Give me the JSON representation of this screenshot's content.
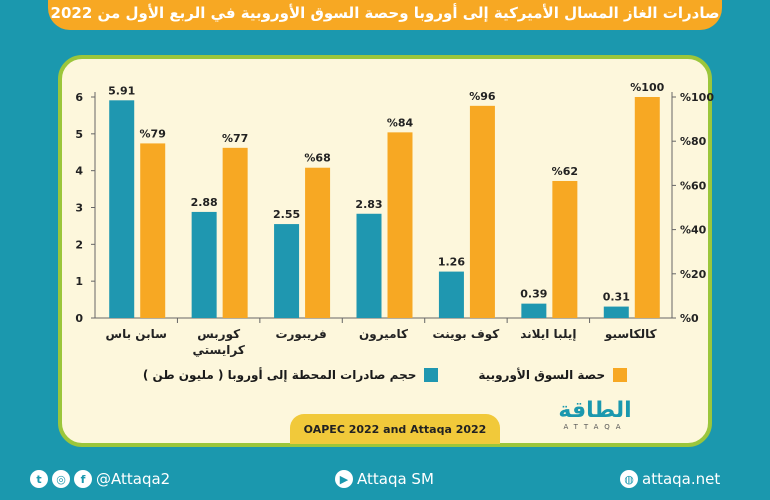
{
  "title": "صادرات الغاز المسال الأميركية إلى أوروبا وحصة السوق الأوروبية في الربع الأول من 2022",
  "chart_data": {
    "type": "bar",
    "categories": [
      "سابن باس",
      "كوربس كرايستي",
      "فريبورت",
      "كاميرون",
      "كوف بوينت",
      "إيلبا ايلاند",
      "كالكاسيو"
    ],
    "series": [
      {
        "name": "حجم صادرات المحطة إلى أوروبا ( مليون طن )",
        "axis": "left",
        "color": "#1f97b0",
        "values": [
          5.91,
          2.88,
          2.55,
          2.83,
          1.26,
          0.39,
          0.31
        ],
        "labels": [
          "5.91",
          "2.88",
          "2.55",
          "2.83",
          "1.26",
          "0.39",
          "0.31"
        ]
      },
      {
        "name": "حصة السوق الأوروبية",
        "axis": "right",
        "color": "#f7a823",
        "values": [
          79,
          77,
          68,
          84,
          96,
          62,
          100
        ],
        "labels": [
          "%79",
          "%77",
          "%68",
          "%84",
          "%96",
          "%62",
          "%100"
        ]
      }
    ],
    "left_axis": {
      "range": [
        0,
        6
      ],
      "ticks": [
        "0",
        "1",
        "2",
        "3",
        "4",
        "5",
        "6"
      ]
    },
    "right_axis": {
      "range": [
        0,
        100
      ],
      "ticks": [
        "%0",
        "%20",
        "%40",
        "%60",
        "%80",
        "%100"
      ]
    },
    "grid": false,
    "legend_position": "bottom"
  },
  "source": "OAPEC 2022 and Attaqa 2022",
  "logo": {
    "arabic": "الطاقة",
    "english": "ATTAQA"
  },
  "footer": {
    "social": "@Attaqa2",
    "youtube": "Attaqa SM",
    "website": "attaqa.net"
  }
}
